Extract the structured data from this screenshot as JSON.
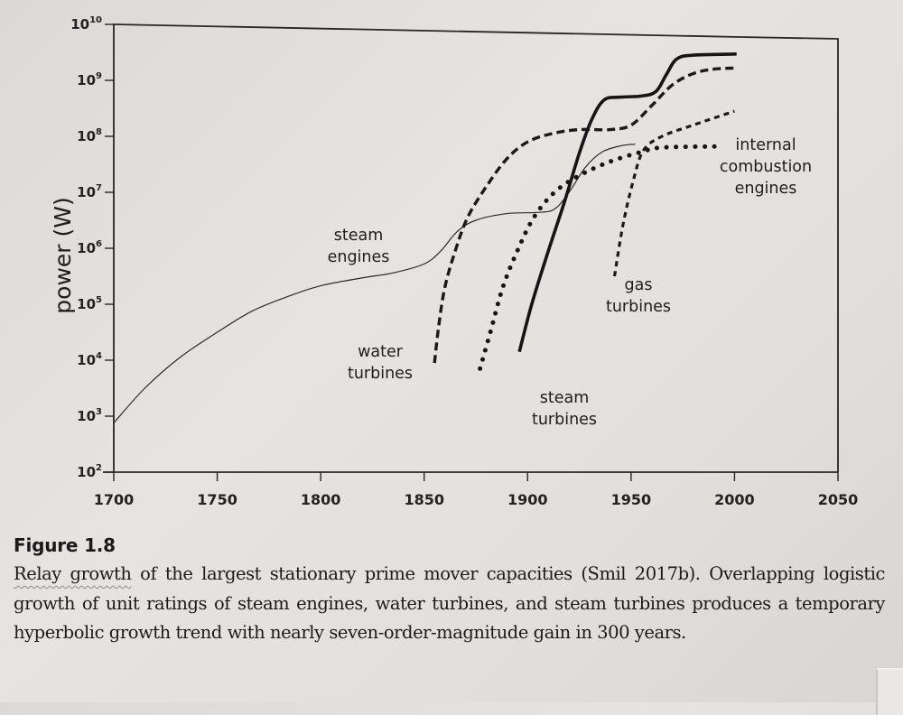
{
  "chart_data": {
    "type": "line",
    "title": "",
    "xlabel": "",
    "ylabel": "power (W)",
    "yscale": "log",
    "xlim": [
      1700,
      2050
    ],
    "ylim_log10": [
      2,
      10
    ],
    "grid": false,
    "legend": "inline labels",
    "x_ticks": [
      "1700",
      "1750",
      "1800",
      "1850",
      "1900",
      "1950",
      "2000",
      "2050"
    ],
    "y_ticks": [
      {
        "base": "10",
        "exp": "2"
      },
      {
        "base": "10",
        "exp": "3"
      },
      {
        "base": "10",
        "exp": "4"
      },
      {
        "base": "10",
        "exp": "5"
      },
      {
        "base": "10",
        "exp": "6"
      },
      {
        "base": "10",
        "exp": "7"
      },
      {
        "base": "10",
        "exp": "8"
      },
      {
        "base": "10",
        "exp": "9"
      },
      {
        "base": "10",
        "exp": "10"
      }
    ],
    "series": [
      {
        "name": "steam engines",
        "label_lines": [
          "steam",
          "engines"
        ],
        "style": "thin-solid",
        "points_year_log10W": [
          [
            1700,
            2.88
          ],
          [
            1715,
            3.5
          ],
          [
            1732,
            4.05
          ],
          [
            1750,
            4.5
          ],
          [
            1767,
            4.88
          ],
          [
            1785,
            5.15
          ],
          [
            1800,
            5.33
          ],
          [
            1820,
            5.47
          ],
          [
            1835,
            5.56
          ],
          [
            1850,
            5.72
          ],
          [
            1858,
            5.95
          ],
          [
            1866,
            6.3
          ],
          [
            1875,
            6.5
          ],
          [
            1890,
            6.62
          ],
          [
            1905,
            6.64
          ],
          [
            1913,
            6.7
          ],
          [
            1920,
            7.0
          ],
          [
            1928,
            7.45
          ],
          [
            1936,
            7.72
          ],
          [
            1945,
            7.83
          ],
          [
            1952,
            7.86
          ]
        ]
      },
      {
        "name": "water turbines",
        "label_lines": [
          "water",
          "turbines"
        ],
        "style": "heavy-dashed",
        "points_year_log10W": [
          [
            1855,
            3.95
          ],
          [
            1857,
            4.6
          ],
          [
            1860,
            5.3
          ],
          [
            1865,
            5.95
          ],
          [
            1871,
            6.55
          ],
          [
            1880,
            7.1
          ],
          [
            1890,
            7.6
          ],
          [
            1900,
            7.9
          ],
          [
            1912,
            8.05
          ],
          [
            1925,
            8.12
          ],
          [
            1940,
            8.12
          ],
          [
            1950,
            8.2
          ],
          [
            1960,
            8.55
          ],
          [
            1970,
            8.92
          ],
          [
            1980,
            9.12
          ],
          [
            1990,
            9.2
          ],
          [
            2001,
            9.22
          ]
        ]
      },
      {
        "name": "steam turbines",
        "label_lines": [
          "steam",
          "turbines"
        ],
        "style": "heavy-solid",
        "points_year_log10W": [
          [
            1896,
            4.15
          ],
          [
            1902,
            5.0
          ],
          [
            1910,
            5.95
          ],
          [
            1918,
            6.85
          ],
          [
            1925,
            7.7
          ],
          [
            1931,
            8.3
          ],
          [
            1937,
            8.65
          ],
          [
            1945,
            8.7
          ],
          [
            1955,
            8.72
          ],
          [
            1962,
            8.8
          ],
          [
            1967,
            9.1
          ],
          [
            1972,
            9.38
          ],
          [
            1980,
            9.45
          ],
          [
            2001,
            9.47
          ]
        ]
      },
      {
        "name": "internal combustion engines",
        "label_lines": [
          "internal",
          "combustion",
          "engines"
        ],
        "style": "dotted",
        "points_year_log10W": [
          [
            1877,
            3.85
          ],
          [
            1882,
            4.5
          ],
          [
            1888,
            5.3
          ],
          [
            1895,
            5.95
          ],
          [
            1903,
            6.55
          ],
          [
            1913,
            7.0
          ],
          [
            1925,
            7.3
          ],
          [
            1940,
            7.55
          ],
          [
            1955,
            7.72
          ],
          [
            1965,
            7.8
          ],
          [
            1993,
            7.82
          ]
        ]
      },
      {
        "name": "gas turbines",
        "label_lines": [
          "gas",
          "turbines"
        ],
        "style": "medium-dashed",
        "points_year_log10W": [
          [
            1942,
            5.5
          ],
          [
            1946,
            6.4
          ],
          [
            1951,
            7.2
          ],
          [
            1956,
            7.75
          ],
          [
            1965,
            8.0
          ],
          [
            1980,
            8.2
          ],
          [
            2000,
            8.45
          ]
        ]
      }
    ]
  },
  "caption": {
    "figure_title": "Figure 1.8",
    "text_underlined": "Relay growth",
    "text_rest": " of the largest stationary prime mover capacities (Smil 2017b). Overlapping logistic growth of unit ratings of steam engines, water turbines, and steam turbines produces a temporary hyperbolic growth trend with nearly seven-order-magnitude gain in 300 years."
  }
}
